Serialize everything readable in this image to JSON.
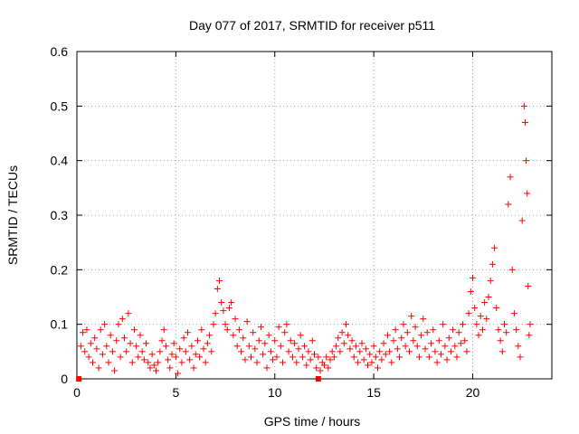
{
  "chart_data": {
    "type": "scatter",
    "title": "Day 077 of 2017, SRMTID for receiver p511",
    "xlabel": "GPS time / hours",
    "ylabel": "SRMTID / TECUs",
    "xlim": [
      0,
      24
    ],
    "ylim": [
      0,
      0.6
    ],
    "xticks": [
      0,
      5,
      10,
      15,
      20
    ],
    "xtick_labels": [
      "0",
      "5",
      "10",
      "15",
      "20"
    ],
    "yticks": [
      0,
      0.1,
      0.2,
      0.3,
      0.4,
      0.5,
      0.6
    ],
    "ytick_labels": [
      "0",
      "0.1",
      "0.2",
      "0.3",
      "0.4",
      "0.5",
      "0.6"
    ],
    "grid": true,
    "marker": "+",
    "series_color": "#ff0000",
    "series": [
      {
        "name": "SRMTID",
        "points": [
          [
            0.2,
            0.06
          ],
          [
            0.3,
            0.085
          ],
          [
            0.4,
            0.05
          ],
          [
            0.5,
            0.09
          ],
          [
            0.6,
            0.04
          ],
          [
            0.7,
            0.065
          ],
          [
            0.8,
            0.03
          ],
          [
            0.9,
            0.075
          ],
          [
            1.0,
            0.055
          ],
          [
            1.1,
            0.02
          ],
          [
            1.2,
            0.09
          ],
          [
            1.3,
            0.045
          ],
          [
            1.4,
            0.1
          ],
          [
            1.5,
            0.06
          ],
          [
            1.6,
            0.03
          ],
          [
            1.7,
            0.08
          ],
          [
            1.8,
            0.05
          ],
          [
            1.9,
            0.015
          ],
          [
            2.0,
            0.07
          ],
          [
            2.1,
            0.1
          ],
          [
            2.2,
            0.04
          ],
          [
            2.3,
            0.11
          ],
          [
            2.4,
            0.075
          ],
          [
            2.5,
            0.05
          ],
          [
            2.6,
            0.12
          ],
          [
            2.7,
            0.065
          ],
          [
            2.8,
            0.03
          ],
          [
            2.9,
            0.09
          ],
          [
            3.0,
            0.06
          ],
          [
            3.1,
            0.04
          ],
          [
            3.2,
            0.08
          ],
          [
            3.3,
            0.05
          ],
          [
            3.4,
            0.035
          ],
          [
            3.5,
            0.065
          ],
          [
            3.6,
            0.03
          ],
          [
            3.7,
            0.02
          ],
          [
            3.8,
            0.045
          ],
          [
            3.9,
            0.025
          ],
          [
            4.0,
            0.015
          ],
          [
            4.1,
            0.03
          ],
          [
            4.2,
            0.05
          ],
          [
            4.3,
            0.07
          ],
          [
            4.4,
            0.09
          ],
          [
            4.5,
            0.06
          ],
          [
            4.6,
            0.035
          ],
          [
            4.7,
            0.02
          ],
          [
            4.8,
            0.045
          ],
          [
            4.9,
            0.065
          ],
          [
            5.0,
            0.04
          ],
          [
            5.1,
            0.01
          ],
          [
            5.2,
            0.055
          ],
          [
            5.3,
            0.03
          ],
          [
            5.4,
            0.075
          ],
          [
            5.5,
            0.05
          ],
          [
            5.6,
            0.085
          ],
          [
            5.7,
            0.035
          ],
          [
            5.8,
            0.06
          ],
          [
            5.9,
            0.02
          ],
          [
            6.0,
            0.045
          ],
          [
            6.1,
            0.07
          ],
          [
            6.2,
            0.04
          ],
          [
            6.3,
            0.09
          ],
          [
            6.4,
            0.055
          ],
          [
            6.5,
            0.03
          ],
          [
            6.6,
            0.065
          ],
          [
            6.7,
            0.08
          ],
          [
            6.8,
            0.05
          ],
          [
            6.9,
            0.1
          ],
          [
            7.0,
            0.12
          ],
          [
            7.1,
            0.165
          ],
          [
            7.2,
            0.18
          ],
          [
            7.3,
            0.14
          ],
          [
            7.4,
            0.125
          ],
          [
            7.5,
            0.1
          ],
          [
            7.6,
            0.09
          ],
          [
            7.7,
            0.13
          ],
          [
            7.8,
            0.14
          ],
          [
            7.9,
            0.08
          ],
          [
            8.0,
            0.11
          ],
          [
            8.1,
            0.06
          ],
          [
            8.2,
            0.09
          ],
          [
            8.3,
            0.05
          ],
          [
            8.4,
            0.075
          ],
          [
            8.5,
            0.035
          ],
          [
            8.6,
            0.105
          ],
          [
            8.7,
            0.06
          ],
          [
            8.8,
            0.04
          ],
          [
            8.9,
            0.085
          ],
          [
            9.0,
            0.055
          ],
          [
            9.1,
            0.03
          ],
          [
            9.2,
            0.07
          ],
          [
            9.3,
            0.095
          ],
          [
            9.4,
            0.045
          ],
          [
            9.5,
            0.065
          ],
          [
            9.6,
            0.02
          ],
          [
            9.7,
            0.08
          ],
          [
            9.8,
            0.05
          ],
          [
            9.9,
            0.035
          ],
          [
            10.0,
            0.07
          ],
          [
            10.1,
            0.04
          ],
          [
            10.2,
            0.095
          ],
          [
            10.3,
            0.06
          ],
          [
            10.4,
            0.03
          ],
          [
            10.5,
            0.085
          ],
          [
            10.6,
            0.1
          ],
          [
            10.7,
            0.05
          ],
          [
            10.8,
            0.07
          ],
          [
            10.9,
            0.04
          ],
          [
            11.0,
            0.065
          ],
          [
            11.1,
            0.03
          ],
          [
            11.2,
            0.055
          ],
          [
            11.3,
            0.08
          ],
          [
            11.4,
            0.04
          ],
          [
            11.5,
            0.06
          ],
          [
            11.6,
            0.025
          ],
          [
            11.7,
            0.05
          ],
          [
            11.8,
            0.035
          ],
          [
            11.9,
            0.07
          ],
          [
            12.0,
            0.045
          ],
          [
            12.1,
            0.02
          ],
          [
            12.2,
            0.04
          ],
          [
            12.3,
            0.015
          ],
          [
            12.4,
            0.03
          ],
          [
            12.5,
            0.025
          ],
          [
            12.6,
            0.04
          ],
          [
            12.7,
            0.02
          ],
          [
            12.8,
            0.035
          ],
          [
            12.9,
            0.05
          ],
          [
            13.0,
            0.04
          ],
          [
            13.1,
            0.06
          ],
          [
            13.2,
            0.075
          ],
          [
            13.3,
            0.05
          ],
          [
            13.4,
            0.085
          ],
          [
            13.5,
            0.065
          ],
          [
            13.6,
            0.1
          ],
          [
            13.7,
            0.08
          ],
          [
            13.8,
            0.055
          ],
          [
            13.9,
            0.07
          ],
          [
            14.0,
            0.04
          ],
          [
            14.1,
            0.06
          ],
          [
            14.2,
            0.03
          ],
          [
            14.3,
            0.05
          ],
          [
            14.4,
            0.065
          ],
          [
            14.5,
            0.035
          ],
          [
            14.6,
            0.055
          ],
          [
            14.7,
            0.025
          ],
          [
            14.8,
            0.045
          ],
          [
            14.9,
            0.03
          ],
          [
            15.0,
            0.06
          ],
          [
            15.1,
            0.04
          ],
          [
            15.2,
            0.02
          ],
          [
            15.3,
            0.05
          ],
          [
            15.4,
            0.035
          ],
          [
            15.5,
            0.065
          ],
          [
            15.6,
            0.045
          ],
          [
            15.7,
            0.08
          ],
          [
            15.8,
            0.05
          ],
          [
            15.9,
            0.03
          ],
          [
            16.0,
            0.07
          ],
          [
            16.1,
            0.09
          ],
          [
            16.2,
            0.055
          ],
          [
            16.3,
            0.04
          ],
          [
            16.4,
            0.075
          ],
          [
            16.5,
            0.1
          ],
          [
            16.6,
            0.06
          ],
          [
            16.7,
            0.085
          ],
          [
            16.8,
            0.05
          ],
          [
            16.9,
            0.115
          ],
          [
            17.0,
            0.07
          ],
          [
            17.1,
            0.095
          ],
          [
            17.2,
            0.06
          ],
          [
            17.3,
            0.04
          ],
          [
            17.4,
            0.08
          ],
          [
            17.5,
            0.11
          ],
          [
            17.6,
            0.055
          ],
          [
            17.7,
            0.085
          ],
          [
            17.8,
            0.04
          ],
          [
            17.9,
            0.065
          ],
          [
            18.0,
            0.09
          ],
          [
            18.1,
            0.05
          ],
          [
            18.2,
            0.03
          ],
          [
            18.3,
            0.07
          ],
          [
            18.4,
            0.045
          ],
          [
            18.5,
            0.1
          ],
          [
            18.6,
            0.06
          ],
          [
            18.7,
            0.035
          ],
          [
            18.8,
            0.075
          ],
          [
            18.9,
            0.05
          ],
          [
            19.0,
            0.09
          ],
          [
            19.1,
            0.06
          ],
          [
            19.2,
            0.04
          ],
          [
            19.3,
            0.085
          ],
          [
            19.4,
            0.065
          ],
          [
            19.5,
            0.1
          ],
          [
            19.6,
            0.07
          ],
          [
            19.7,
            0.05
          ],
          [
            19.8,
            0.12
          ],
          [
            19.9,
            0.16
          ],
          [
            20.0,
            0.185
          ],
          [
            20.1,
            0.13
          ],
          [
            20.2,
            0.1
          ],
          [
            20.3,
            0.08
          ],
          [
            20.4,
            0.115
          ],
          [
            20.5,
            0.09
          ],
          [
            20.6,
            0.14
          ],
          [
            20.7,
            0.11
          ],
          [
            20.8,
            0.15
          ],
          [
            20.9,
            0.18
          ],
          [
            21.0,
            0.21
          ],
          [
            21.1,
            0.24
          ],
          [
            21.2,
            0.13
          ],
          [
            21.3,
            0.09
          ],
          [
            21.4,
            0.07
          ],
          [
            21.5,
            0.05
          ],
          [
            21.6,
            0.1
          ],
          [
            21.7,
            0.085
          ],
          [
            21.8,
            0.32
          ],
          [
            21.9,
            0.37
          ],
          [
            22.0,
            0.2
          ],
          [
            22.1,
            0.12
          ],
          [
            22.2,
            0.09
          ],
          [
            22.3,
            0.06
          ],
          [
            22.4,
            0.04
          ],
          [
            22.5,
            0.29
          ],
          [
            22.6,
            0.5
          ],
          [
            22.65,
            0.47
          ],
          [
            22.7,
            0.4
          ],
          [
            22.75,
            0.34
          ],
          [
            22.8,
            0.17
          ],
          [
            22.85,
            0.08
          ],
          [
            22.9,
            0.1
          ]
        ]
      }
    ],
    "baseline_markers": [
      [
        0.1,
        0
      ],
      [
        12.2,
        0
      ]
    ]
  }
}
